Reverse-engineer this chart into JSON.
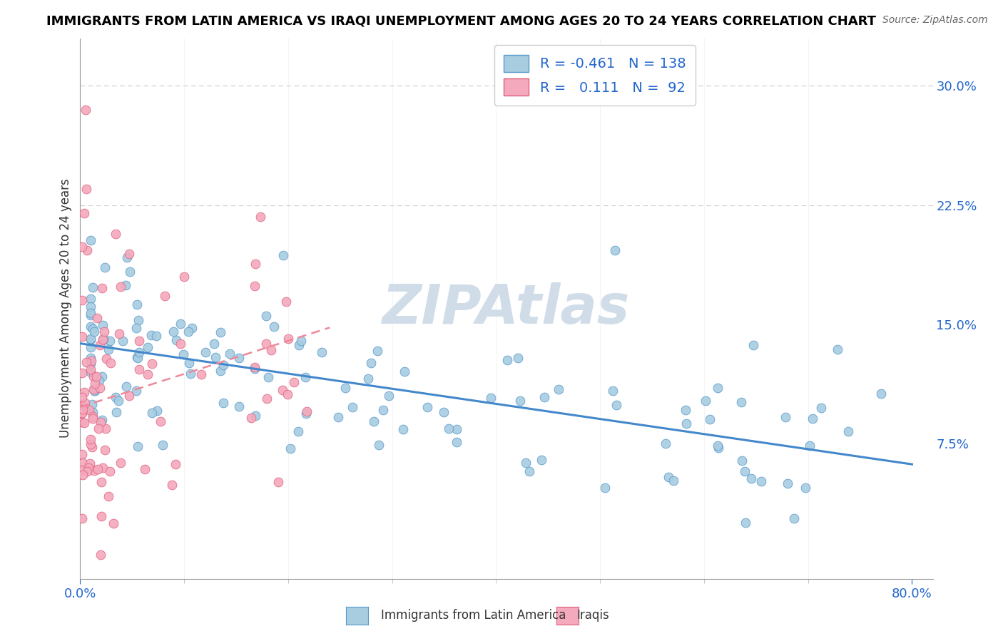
{
  "title": "IMMIGRANTS FROM LATIN AMERICA VS IRAQI UNEMPLOYMENT AMONG AGES 20 TO 24 YEARS CORRELATION CHART",
  "source": "Source: ZipAtlas.com",
  "ylabel": "Unemployment Among Ages 20 to 24 years",
  "yticks": [
    0.075,
    0.15,
    0.225,
    0.3
  ],
  "ytick_labels": [
    "7.5%",
    "15.0%",
    "22.5%",
    "30.0%"
  ],
  "xtick_labels": [
    "0.0%",
    "80.0%"
  ],
  "xticks": [
    0.0,
    0.8
  ],
  "xlim": [
    0.0,
    0.82
  ],
  "ylim": [
    -0.01,
    0.33
  ],
  "legend_blue_R": "-0.461",
  "legend_blue_N": "138",
  "legend_pink_R": "0.111",
  "legend_pink_N": "92",
  "blue_color": "#a8cce0",
  "pink_color": "#f4a9bc",
  "blue_edge_color": "#5599cc",
  "pink_edge_color": "#e06080",
  "blue_line_color": "#4488cc",
  "pink_line_color": "#ee8899",
  "watermark": "ZIPAtlas",
  "watermark_color": "#d0dde8",
  "blue_trend": [
    0.0,
    0.8,
    0.138,
    0.062
  ],
  "pink_trend": [
    0.0,
    0.24,
    0.098,
    0.148
  ],
  "ref_line_y": 0.3,
  "legend_label_blue": "Immigrants from Latin America",
  "legend_label_pink": "Iraqis"
}
